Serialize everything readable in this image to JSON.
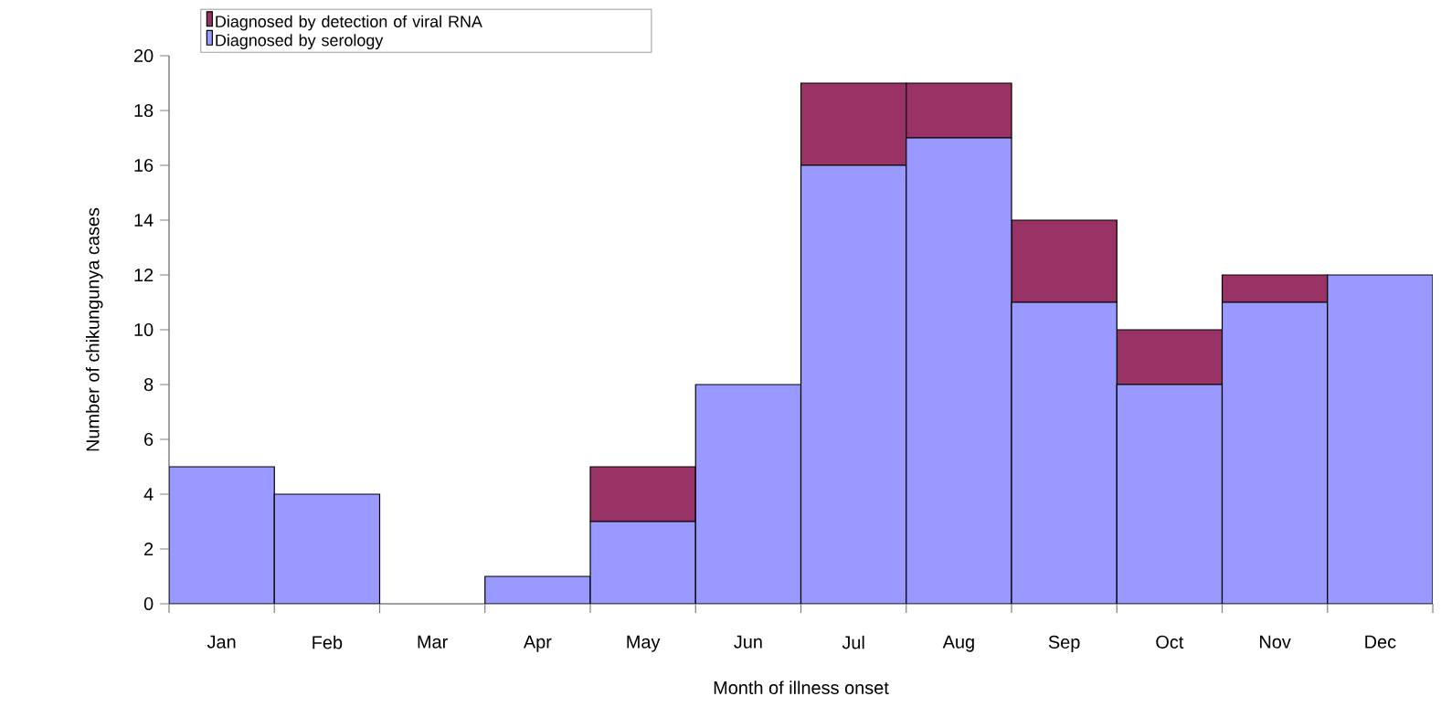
{
  "chart_data": {
    "type": "bar",
    "stacked": true,
    "xlabel": "Month of illness onset",
    "ylabel": "Number of chikungunya cases",
    "categories": [
      "Jan",
      "Feb",
      "Mar",
      "Apr",
      "May",
      "Jun",
      "Jul",
      "Aug",
      "Sep",
      "Oct",
      "Nov",
      "Dec"
    ],
    "series": [
      {
        "name": "Diagnosed by serology",
        "color": "#9999ff",
        "values": [
          5,
          4,
          0,
          1,
          3,
          8,
          16,
          17,
          11,
          8,
          11,
          12
        ]
      },
      {
        "name": "Diagnosed by detection of viral RNA",
        "color": "#993366",
        "values": [
          0,
          0,
          0,
          0,
          2,
          0,
          3,
          2,
          3,
          2,
          1,
          0
        ]
      }
    ],
    "ylim": [
      0,
      20
    ],
    "yticks": [
      0,
      2,
      4,
      6,
      8,
      10,
      12,
      14,
      16,
      18,
      20
    ],
    "grid": false,
    "legend": "top left"
  }
}
